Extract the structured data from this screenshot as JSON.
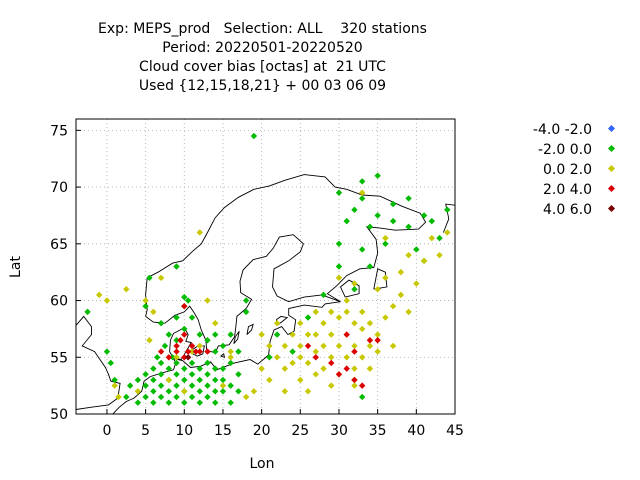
{
  "title_lines": [
    "Exp: MEPS_prod   Selection: ALL    320 stations",
    "Period: 20220501-20220520",
    "Cloud cover bias [octas] at  21 UTC",
    "Used {12,15,18,21} + 00 03 06 09"
  ],
  "legend": [
    {
      "label": "-4.0 -2.0",
      "color": "#3366ff"
    },
    {
      "label": "-2.0 0.0",
      "color": "#00bb00"
    },
    {
      "label": "0.0 2.0",
      "color": "#c8c800"
    },
    {
      "label": "2.0 4.0",
      "color": "#dd0000"
    },
    {
      "label": "4.0 6.0",
      "color": "#770000"
    }
  ],
  "chart_data": {
    "type": "scatter",
    "xlabel": "Lon",
    "ylabel": "Lat",
    "xlim": [
      -4,
      45
    ],
    "ylim": [
      50,
      76
    ],
    "xticks": [
      "0",
      "5",
      "10",
      "15",
      "20",
      "25",
      "30",
      "35",
      "40",
      "45"
    ],
    "yticks": [
      "50",
      "55",
      "60",
      "65",
      "70",
      "75"
    ],
    "grid": true,
    "legend_position": "right",
    "series": [
      {
        "name": "-2.0 0.0",
        "color": "#00bb00",
        "points": [
          [
            -2.5,
            59.0
          ],
          [
            0,
            55.5
          ],
          [
            0.5,
            54.5
          ],
          [
            1,
            53.0
          ],
          [
            2.5,
            51.5
          ],
          [
            3,
            52.5
          ],
          [
            4,
            51.0
          ],
          [
            4,
            53.0
          ],
          [
            5,
            51.5
          ],
          [
            5,
            52.5
          ],
          [
            5,
            53.5
          ],
          [
            5,
            59.5
          ],
          [
            6,
            51.0
          ],
          [
            6,
            52.0
          ],
          [
            6,
            53.0
          ],
          [
            6,
            54.0
          ],
          [
            6.5,
            55.0
          ],
          [
            7,
            51.5
          ],
          [
            7,
            52.5
          ],
          [
            7,
            53.5
          ],
          [
            7,
            54.5
          ],
          [
            7.5,
            56.0
          ],
          [
            7,
            58.0
          ],
          [
            8,
            51.0
          ],
          [
            8,
            52.0
          ],
          [
            8,
            53.0
          ],
          [
            8,
            54.0
          ],
          [
            8,
            57.0
          ],
          [
            8.5,
            55.0
          ],
          [
            9,
            51.5
          ],
          [
            9,
            52.5
          ],
          [
            9,
            53.5
          ],
          [
            9,
            54.5
          ],
          [
            9,
            56.5
          ],
          [
            9,
            58.5
          ],
          [
            10,
            51.0
          ],
          [
            10,
            52.0
          ],
          [
            10,
            53.0
          ],
          [
            10,
            54.0
          ],
          [
            10,
            57.5
          ],
          [
            10,
            59.5
          ],
          [
            10.5,
            60.0
          ],
          [
            11,
            51.5
          ],
          [
            11,
            52.5
          ],
          [
            11,
            53.5
          ],
          [
            11,
            54.5
          ],
          [
            11,
            58.5
          ],
          [
            12,
            51.0
          ],
          [
            12,
            52.0
          ],
          [
            12,
            53.0
          ],
          [
            12,
            54.0
          ],
          [
            12,
            57.0
          ],
          [
            13,
            51.5
          ],
          [
            13,
            52.5
          ],
          [
            13,
            53.5
          ],
          [
            13,
            54.5
          ],
          [
            13,
            56.5
          ],
          [
            14,
            51.0
          ],
          [
            14,
            52.0
          ],
          [
            14,
            53.0
          ],
          [
            14,
            54.0
          ],
          [
            14,
            55.5
          ],
          [
            14,
            57.0
          ],
          [
            15,
            52.0
          ],
          [
            15,
            53.0
          ],
          [
            15,
            54.0
          ],
          [
            15,
            56.0
          ],
          [
            16,
            51.0
          ],
          [
            16,
            52.5
          ],
          [
            16,
            54.5
          ],
          [
            16,
            57.0
          ],
          [
            17,
            52.0
          ],
          [
            17,
            53.5
          ],
          [
            17,
            55.5
          ],
          [
            18,
            59.0
          ],
          [
            18,
            60.0
          ],
          [
            19,
            74.5
          ],
          [
            24,
            55.5
          ],
          [
            26,
            58.5
          ],
          [
            28,
            60.5
          ],
          [
            30,
            63.0
          ],
          [
            30,
            65.0
          ],
          [
            31,
            67.0
          ],
          [
            32,
            68.0
          ],
          [
            33,
            69.0
          ],
          [
            34,
            66.5
          ],
          [
            35,
            67.5
          ],
          [
            36,
            65.0
          ],
          [
            37,
            67.0
          ],
          [
            39,
            66.5
          ],
          [
            40,
            64.5
          ],
          [
            41,
            63.5
          ],
          [
            42,
            67.0
          ],
          [
            43,
            65.5
          ],
          [
            44,
            68.0
          ],
          [
            30,
            69.5
          ],
          [
            33,
            70.5
          ],
          [
            35,
            71.0
          ],
          [
            37,
            68.5
          ],
          [
            39,
            69.0
          ],
          [
            41,
            67.5
          ],
          [
            33,
            64.5
          ],
          [
            34,
            63.0
          ],
          [
            32,
            61.0
          ],
          [
            32,
            53.0
          ],
          [
            33,
            51.5
          ],
          [
            21,
            55.0
          ],
          [
            22,
            57.0
          ],
          [
            10,
            60.3
          ],
          [
            5.5,
            62.0
          ],
          [
            9,
            63.0
          ]
        ]
      },
      {
        "name": "0.0 2.0",
        "color": "#c8c800",
        "points": [
          [
            -1,
            60.5
          ],
          [
            0,
            60.0
          ],
          [
            1,
            52.5
          ],
          [
            1.5,
            51.5
          ],
          [
            2.5,
            61.0
          ],
          [
            4,
            52.0
          ],
          [
            5,
            60.0
          ],
          [
            5.5,
            56.5
          ],
          [
            6,
            59.0
          ],
          [
            7,
            62.0
          ],
          [
            8,
            53.0
          ],
          [
            9,
            55.0
          ],
          [
            10,
            52.0
          ],
          [
            11,
            55.5
          ],
          [
            12,
            56.0
          ],
          [
            13,
            60.0
          ],
          [
            14,
            58.0
          ],
          [
            15,
            52.5
          ],
          [
            16,
            55.5
          ],
          [
            19,
            52.0
          ],
          [
            20,
            54.0
          ],
          [
            21,
            56.0
          ],
          [
            21,
            53.0
          ],
          [
            22,
            55.0
          ],
          [
            22,
            58.0
          ],
          [
            23,
            54.0
          ],
          [
            23,
            56.0
          ],
          [
            24,
            54.5
          ],
          [
            24,
            57.0
          ],
          [
            25,
            53.0
          ],
          [
            25,
            55.0
          ],
          [
            25,
            56.0
          ],
          [
            25,
            58.0
          ],
          [
            26,
            54.5
          ],
          [
            26,
            57.0
          ],
          [
            27,
            53.5
          ],
          [
            27,
            55.5
          ],
          [
            27,
            57.0
          ],
          [
            27,
            59.0
          ],
          [
            28,
            54.0
          ],
          [
            28,
            56.0
          ],
          [
            28,
            58.0
          ],
          [
            29,
            52.5
          ],
          [
            29,
            55.0
          ],
          [
            29,
            57.0
          ],
          [
            29,
            59.0
          ],
          [
            30,
            53.5
          ],
          [
            30,
            56.0
          ],
          [
            30,
            58.5
          ],
          [
            31,
            55.0
          ],
          [
            31,
            57.0
          ],
          [
            31,
            59.0
          ],
          [
            31,
            60.0
          ],
          [
            32,
            52.5
          ],
          [
            32,
            54.0
          ],
          [
            32,
            56.0
          ],
          [
            32,
            58.0
          ],
          [
            33,
            55.0
          ],
          [
            33,
            57.5
          ],
          [
            33,
            59.0
          ],
          [
            34,
            54.0
          ],
          [
            34,
            56.0
          ],
          [
            34,
            58.0
          ],
          [
            35,
            55.5
          ],
          [
            35,
            57.0
          ],
          [
            35,
            61.0
          ],
          [
            36,
            58.5
          ],
          [
            36,
            62.0
          ],
          [
            37,
            59.5
          ],
          [
            37,
            56.0
          ],
          [
            38,
            60.5
          ],
          [
            38,
            62.5
          ],
          [
            39,
            59.0
          ],
          [
            39,
            64.0
          ],
          [
            40,
            61.5
          ],
          [
            41,
            63.5
          ],
          [
            42,
            65.5
          ],
          [
            43,
            64.0
          ],
          [
            44,
            66.0
          ],
          [
            32,
            61.5
          ],
          [
            30,
            62.0
          ],
          [
            36,
            65.5
          ],
          [
            33,
            69.5
          ],
          [
            12,
            66.0
          ],
          [
            16,
            55.0
          ],
          [
            18,
            51.5
          ],
          [
            20,
            57.0
          ],
          [
            26,
            52.0
          ],
          [
            23,
            52.0
          ]
        ]
      },
      {
        "name": "2.0 4.0",
        "color": "#dd0000",
        "points": [
          [
            7,
            55.5
          ],
          [
            8,
            55.0
          ],
          [
            9,
            55.5
          ],
          [
            9,
            56.0
          ],
          [
            9.5,
            56.5
          ],
          [
            10,
            55.0
          ],
          [
            10,
            57.0
          ],
          [
            10,
            59.5
          ],
          [
            10.5,
            55.5
          ],
          [
            11,
            56.0
          ],
          [
            11.5,
            55.5
          ],
          [
            12,
            55.5
          ],
          [
            13,
            55.5
          ],
          [
            26,
            56.0
          ],
          [
            27,
            55.0
          ],
          [
            29,
            54.5
          ],
          [
            30,
            53.5
          ],
          [
            31,
            54.0
          ],
          [
            31,
            57.0
          ],
          [
            32,
            55.5
          ],
          [
            32,
            53.0
          ],
          [
            33,
            52.5
          ],
          [
            34,
            56.5
          ],
          [
            35,
            56.5
          ]
        ]
      },
      {
        "name": "4.0 6.0",
        "color": "#770000",
        "points": [
          [
            10.5,
            55.0
          ]
        ]
      }
    ]
  }
}
